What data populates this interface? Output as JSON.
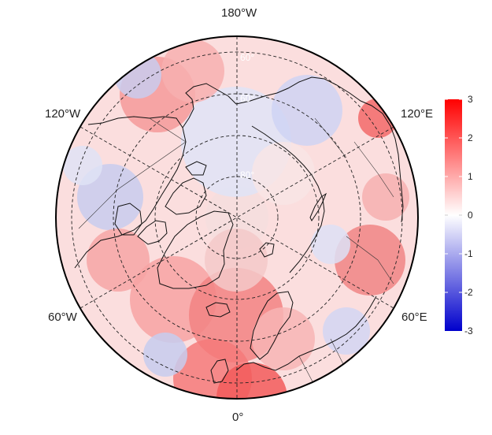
{
  "map": {
    "projection": "north-polar-stereographic",
    "longitude_labels": {
      "top": "180°W",
      "upper_left": "120°W",
      "upper_right": "120°E",
      "lower_left": "60°W",
      "lower_right": "60°E",
      "bottom": "0°"
    },
    "latitude_labels": [
      "60°",
      "60°",
      "80°"
    ],
    "graticule_style": "dashed"
  },
  "colorbar": {
    "ticks": [
      "3",
      "2",
      "1",
      "0",
      "-1",
      "-2",
      "-3"
    ],
    "min": -3,
    "max": 3,
    "colors": {
      "low": "#0000cc",
      "mid": "#ffffff",
      "high": "#ff0000"
    }
  }
}
